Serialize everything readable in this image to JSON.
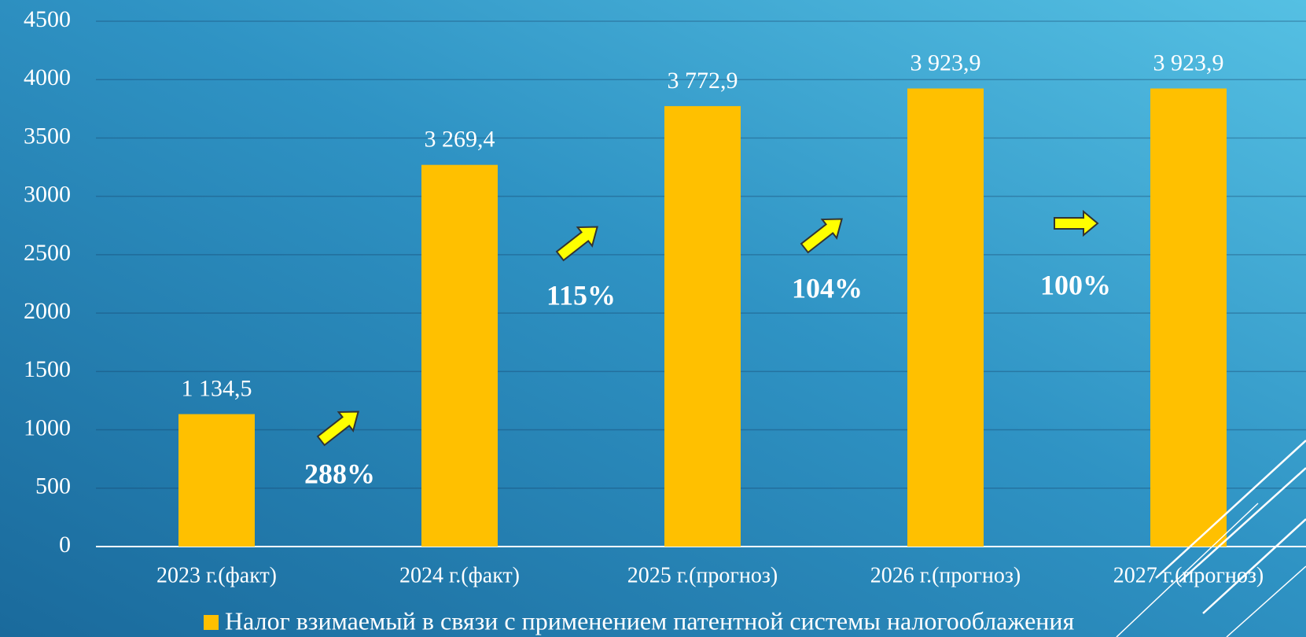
{
  "chart_data": {
    "type": "bar",
    "categories": [
      "2023 г.(факт)",
      "2024 г.(факт)",
      "2025 г.(прогноз)",
      "2026 г.(прогноз)",
      "2027 г.(прогноз)"
    ],
    "series": [
      {
        "name": "Налог взимаемый в связи с применением патентной системы налогооблажения",
        "color": "#ffc000",
        "values": [
          1134.5,
          3269.4,
          3772.9,
          3923.9,
          3923.9
        ],
        "value_labels": [
          "1 134,5",
          "3 269,4",
          "3 772,9",
          "3 923,9",
          "3 923,9"
        ]
      }
    ],
    "annotations": [
      "288%",
      "115%",
      "104%",
      "100%"
    ],
    "ylim": [
      0,
      4500
    ],
    "yticks": [
      0,
      500,
      1000,
      1500,
      2000,
      2500,
      3000,
      3500,
      4000,
      4500
    ],
    "grid": true,
    "legend": "bottom"
  }
}
